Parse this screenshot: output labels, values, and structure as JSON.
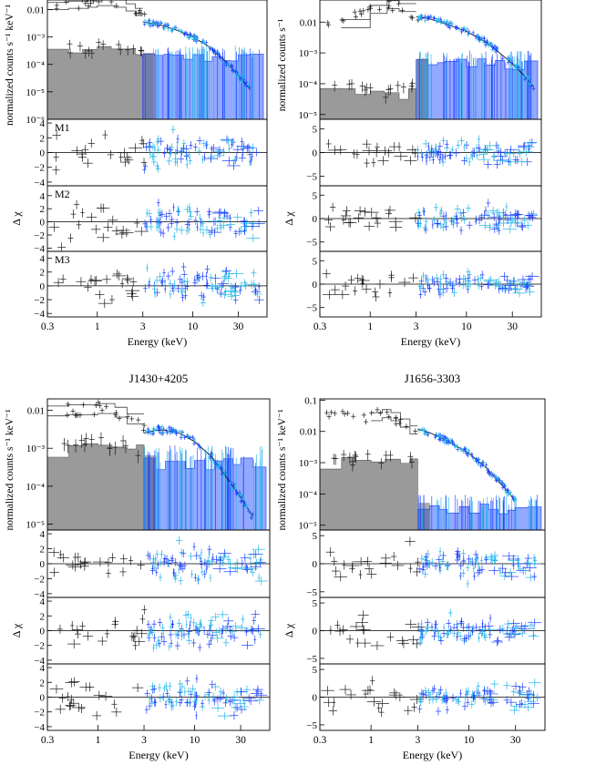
{
  "colors": {
    "xmm_model": "#555555",
    "xmm_data": "#1a1a1a",
    "xmm_bkg": "#9a9a9a",
    "nustar_fpma": "#1a3cff",
    "nustar_fpmb": "#1fb4e8",
    "nustar_bkg": "#6f8cff",
    "bkg_dark": "#4a4a4a"
  },
  "chart_data": [
    {
      "type": "scatter",
      "panel": "top-left",
      "title": "",
      "xlabel": "Energy (keV)",
      "ylabel": "normalized counts s⁻¹ keV⁻¹",
      "residual_ylabel": "Δ χ",
      "xscale": "log",
      "xlim": [
        0.3,
        60
      ],
      "xticks": [
        "0.3",
        "1",
        "3",
        "10",
        "30"
      ],
      "spectrum": {
        "ylim": [
          1e-06,
          0.03
        ],
        "yticks": [
          "10⁻⁶",
          "10⁻⁵",
          "10⁻⁴",
          "10⁻³",
          "0.01"
        ],
        "xmm_model": {
          "x": [
            0.3,
            0.5,
            0.8,
            1.0,
            1.5,
            2.0,
            2.5,
            3.0
          ],
          "y": [
            0.018,
            0.02,
            0.022,
            0.025,
            0.022,
            0.016,
            0.011,
            0.007
          ]
        },
        "nustar_model": {
          "x": [
            3,
            4,
            5,
            7,
            10,
            14,
            20,
            30,
            40
          ],
          "y": [
            0.0035,
            0.003,
            0.0025,
            0.0017,
            0.001,
            0.0005,
            0.00018,
            4e-05,
            1.2e-05
          ]
        },
        "xmm_bkg_level": 0.0003,
        "nustar_bkg_level": 0.0002
      },
      "residuals": [
        {
          "label": "M1",
          "ylim": [
            -4.5,
            4.5
          ],
          "yticks": [
            "−4",
            "−2",
            "0",
            "2",
            "4"
          ]
        },
        {
          "label": "M2",
          "ylim": [
            -4.5,
            5.5
          ],
          "yticks": [
            "−4",
            "−2",
            "0",
            "2",
            "4"
          ]
        },
        {
          "label": "M3",
          "ylim": [
            -4.5,
            5.0
          ],
          "yticks": [
            "−4",
            "−2",
            "0",
            "2",
            "4"
          ]
        }
      ]
    },
    {
      "type": "scatter",
      "panel": "top-right",
      "title": "",
      "xlabel": "Energy (keV)",
      "ylabel": "normalized counts s⁻¹",
      "residual_ylabel": "Δ χ",
      "xscale": "log",
      "xlim": [
        0.3,
        60
      ],
      "xticks": [
        "0.3",
        "1",
        "3",
        "10",
        "30"
      ],
      "spectrum": {
        "ylim": [
          7e-06,
          0.09
        ],
        "yticks": [
          "10⁻⁵",
          "10⁻⁴",
          "10⁻³",
          "0.01"
        ],
        "xmm_model": {
          "x": [
            0.5,
            1.0,
            1.5,
            2.0,
            3.0
          ],
          "y": [
            0.012,
            0.035,
            0.05,
            0.04,
            0.022
          ]
        },
        "nustar_model": {
          "x": [
            3,
            4,
            6,
            10,
            15,
            20,
            30,
            40,
            50
          ],
          "y": [
            0.015,
            0.013,
            0.009,
            0.005,
            0.0025,
            0.0013,
            0.00045,
            0.00018,
            8e-05
          ]
        },
        "xmm_bkg_level": 5e-05,
        "nustar_bkg_level": 0.0005
      },
      "residuals": [
        {
          "label": "",
          "ylim": [
            -7,
            7
          ],
          "yticks": [
            "−5",
            "0",
            "5"
          ]
        },
        {
          "label": "",
          "ylim": [
            -7,
            7
          ],
          "yticks": [
            "−5",
            "0",
            "5"
          ]
        },
        {
          "label": "",
          "ylim": [
            -7,
            7
          ],
          "yticks": [
            "−5",
            "0",
            "5"
          ]
        }
      ]
    },
    {
      "type": "scatter",
      "panel": "bottom-left",
      "title": "J1430+4205",
      "xlabel": "Energy (keV)",
      "ylabel": "normalized counts s⁻¹ keV⁻¹",
      "residual_ylabel": "Δ χ",
      "xscale": "log",
      "xlim": [
        0.3,
        60
      ],
      "xticks": [
        "0.3",
        "1",
        "3",
        "10",
        "30"
      ],
      "spectrum": {
        "ylim": [
          7e-06,
          0.02
        ],
        "yticks": [
          "10⁻⁵",
          "10⁻⁴",
          "10⁻³",
          "0.01"
        ],
        "xmm_model": {
          "x": [
            0.3,
            0.5,
            1.0,
            1.5,
            2.0,
            3.0
          ],
          "y": [
            0.013,
            0.014,
            0.015,
            0.012,
            0.008,
            0.005
          ]
        },
        "nustar_model": {
          "x": [
            3,
            4,
            5,
            7,
            10,
            15,
            20,
            30,
            40
          ],
          "y": [
            0.0025,
            0.003,
            0.003,
            0.0025,
            0.0015,
            0.0006,
            0.00022,
            5e-05,
            1.6e-05
          ]
        },
        "xmm_bkg_level": 0.0009,
        "nustar_bkg_level": 0.0005
      },
      "residuals": [
        {
          "label": "",
          "ylim": [
            -4.5,
            4.5
          ],
          "yticks": [
            "−4",
            "−2",
            "0",
            "2",
            "4"
          ]
        },
        {
          "label": "",
          "ylim": [
            -4.5,
            4.5
          ],
          "yticks": [
            "−4",
            "−2",
            "0",
            "2",
            "4"
          ]
        },
        {
          "label": "",
          "ylim": [
            -4.5,
            4.5
          ],
          "yticks": [
            "−4",
            "−2",
            "0",
            "2",
            "4"
          ]
        }
      ]
    },
    {
      "type": "scatter",
      "panel": "bottom-right",
      "title": "J1656-3303",
      "xlabel": "Energy (keV)",
      "ylabel": "normalized counts s⁻¹ keV⁻¹",
      "residual_ylabel": "Δ χ",
      "xscale": "log",
      "xlim": [
        0.3,
        60
      ],
      "xticks": [
        "0.3",
        "1",
        "3",
        "10",
        "30"
      ],
      "spectrum": {
        "ylim": [
          7e-06,
          0.11
        ],
        "yticks": [
          "10⁻⁵",
          "10⁻⁴",
          "10⁻³",
          "0.01",
          "0.1"
        ],
        "xmm_model": {
          "x": [
            1.0,
            1.3,
            1.6,
            2.0,
            2.5,
            3.0
          ],
          "y": [
            0.04,
            0.05,
            0.04,
            0.025,
            0.015,
            0.009
          ]
        },
        "nustar_model": {
          "x": [
            3,
            4,
            6,
            10,
            15,
            20,
            25,
            30
          ],
          "y": [
            0.012,
            0.009,
            0.005,
            0.002,
            0.0007,
            0.00025,
            0.00012,
            6e-05
          ]
        },
        "xmm_bkg_level": 0.001,
        "nustar_bkg_level": 4e-05
      },
      "residuals": [
        {
          "label": "",
          "ylim": [
            -6,
            6
          ],
          "yticks": [
            "−5",
            "0",
            "5"
          ]
        },
        {
          "label": "",
          "ylim": [
            -6,
            6
          ],
          "yticks": [
            "−5",
            "0",
            "5"
          ]
        },
        {
          "label": "",
          "ylim": [
            -6,
            6
          ],
          "yticks": [
            "−5",
            "0",
            "5"
          ]
        }
      ]
    }
  ]
}
